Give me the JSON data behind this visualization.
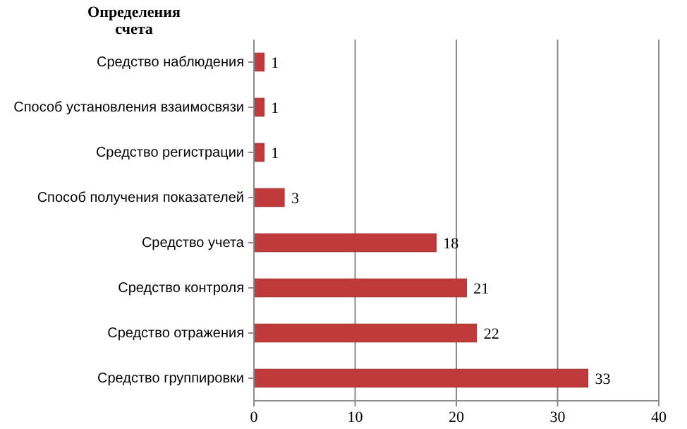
{
  "chart_data": {
    "type": "bar",
    "orientation": "horizontal",
    "title": "Определения счета",
    "categories": [
      "Средство наблюдения",
      "Способ установления взаимосвязи",
      "Средство регистрации",
      "Способ получения показателей",
      "Средство учета",
      "Средство контроля",
      "Средство отражения",
      "Средство группировки"
    ],
    "values": [
      1,
      1,
      1,
      3,
      18,
      21,
      22,
      33
    ],
    "color": "#c0393b",
    "xlim": [
      0,
      40
    ],
    "xticks": [
      0,
      10,
      20,
      30,
      40
    ],
    "grid": "x",
    "data_labels": true
  }
}
